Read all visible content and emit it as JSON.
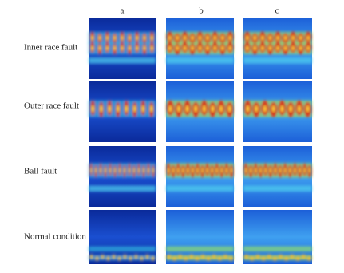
{
  "columns": [
    {
      "label": "a"
    },
    {
      "label": "b"
    },
    {
      "label": "c"
    }
  ],
  "rows": [
    {
      "label": "Inner race fault"
    },
    {
      "label": "Outer race fault"
    },
    {
      "label": "Ball fault"
    },
    {
      "label": "Normal condition"
    }
  ]
}
